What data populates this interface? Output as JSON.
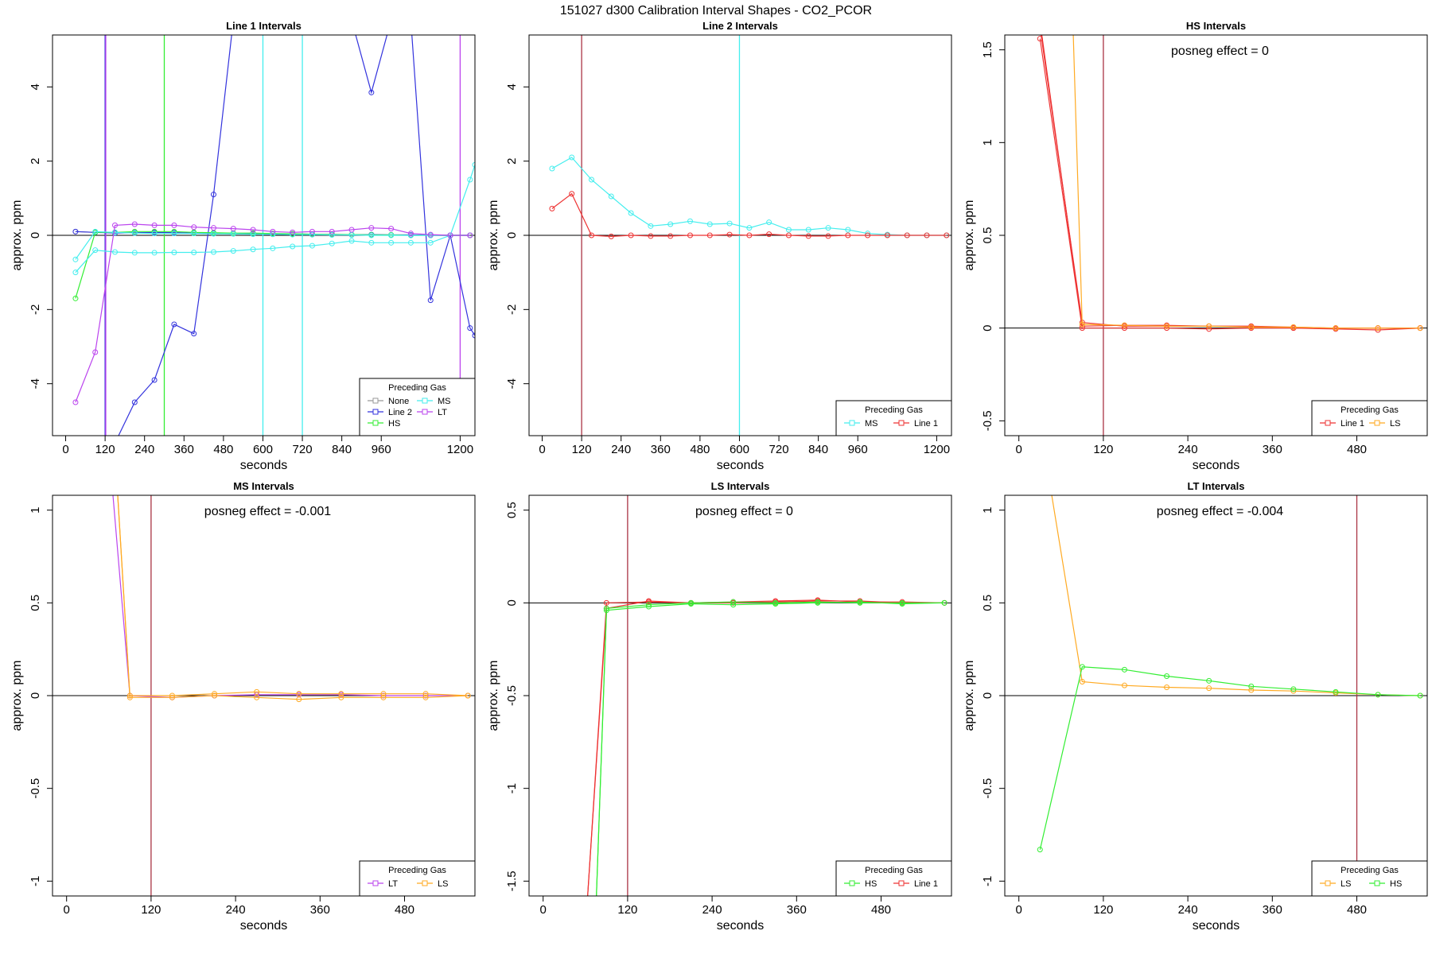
{
  "figure_title": "151027  d300   Calibration Interval Shapes - CO2_PCOR",
  "colors": {
    "None": "#999999",
    "Line 2": "#3333dd",
    "HS": "#33ee33",
    "MS": "#44eeee",
    "LT": "#bb44ee",
    "Line 1": "#ee3333",
    "LS": "#ffaa22",
    "marker_line": "#aa3344"
  },
  "chart_data": [
    {
      "type": "line",
      "title": "Line 1 Intervals",
      "xlabel": "seconds",
      "ylabel": "approx. ppm",
      "xlim": [
        -40,
        1245
      ],
      "ylim": [
        -5.4,
        5.4
      ],
      "xticks": [
        0,
        120,
        240,
        360,
        480,
        600,
        720,
        840,
        960,
        1200
      ],
      "yticks": [
        -4,
        -2,
        0,
        2,
        4
      ],
      "annotation": "",
      "vlines": [
        {
          "x": 120,
          "color": "#3333dd"
        },
        {
          "x": 122,
          "color": "#bb44ee"
        },
        {
          "x": 300,
          "color": "#33ee33"
        },
        {
          "x": 600,
          "color": "#44eeee"
        },
        {
          "x": 720,
          "color": "#44eeee"
        },
        {
          "x": 1200,
          "color": "#bb44ee"
        }
      ],
      "legend": {
        "title": "Preceding Gas",
        "position": "bottom-right",
        "columns": 2,
        "entries": [
          "None",
          "MS",
          "Line 2",
          "LT",
          "HS"
        ]
      },
      "series": [
        {
          "name": "None",
          "x": [
            30,
            90,
            150,
            210,
            270,
            330,
            390,
            450,
            510,
            570,
            630,
            690,
            750,
            810,
            870,
            930,
            990,
            1050,
            1110,
            1170,
            1230
          ],
          "y": [
            0.1,
            0.08,
            0.07,
            0.07,
            0.07,
            0.07,
            0.06,
            0.06,
            0.05,
            0.05,
            0.04,
            0.04,
            0.03,
            0.03,
            0.02,
            0.02,
            0.01,
            0.01,
            0.0,
            0.0,
            0.0
          ]
        },
        {
          "name": "Line 2",
          "x": [
            30,
            90,
            150,
            210,
            270,
            330,
            390,
            450,
            510,
            570,
            630,
            690,
            750,
            810,
            870,
            930,
            990,
            1050,
            1110,
            1170,
            1230
          ],
          "y": [
            0.1,
            0.08,
            0.06,
            0.07,
            0.08,
            0.07,
            0.06,
            0.05,
            0.04,
            0.04,
            0.03,
            0.03,
            0.02,
            0.02,
            0.01,
            0.02,
            0.01,
            0.01,
            0.0,
            0.0,
            0.0
          ]
        },
        {
          "name": "Line 2",
          "x": [
            150,
            210,
            270,
            330,
            390,
            450,
            510,
            870,
            930,
            990,
            1050,
            1110,
            1170,
            1230,
            1245
          ],
          "y": [
            -5.6,
            -4.5,
            -3.9,
            -2.4,
            -2.65,
            1.1,
            5.8,
            5.8,
            3.85,
            5.8,
            5.8,
            -1.75,
            0.0,
            -2.5,
            -2.7
          ]
        },
        {
          "name": "HS",
          "x": [
            30,
            90,
            150,
            210,
            270,
            330,
            390,
            450,
            510,
            570,
            630,
            690,
            750,
            810,
            870,
            930,
            990,
            1050,
            1110,
            1170,
            1230
          ],
          "y": [
            -1.7,
            0.08,
            0.08,
            0.1,
            0.1,
            0.1,
            0.08,
            0.07,
            0.06,
            0.06,
            0.05,
            0.04,
            0.03,
            0.02,
            0.02,
            0.01,
            0.01,
            0.0,
            0.0,
            0.0,
            0.0
          ]
        },
        {
          "name": "MS",
          "x": [
            30,
            90,
            150,
            210,
            270,
            330,
            390,
            450,
            510,
            570,
            630,
            690,
            750,
            810,
            870,
            930,
            990,
            1050,
            1110,
            1170,
            1230,
            1245
          ],
          "y": [
            -1.0,
            -0.4,
            -0.45,
            -0.47,
            -0.47,
            -0.46,
            -0.46,
            -0.45,
            -0.42,
            -0.38,
            -0.35,
            -0.3,
            -0.28,
            -0.22,
            -0.15,
            -0.2,
            -0.2,
            -0.2,
            -0.2,
            0.0,
            1.5,
            1.9
          ]
        },
        {
          "name": "MS",
          "x": [
            30,
            90,
            150,
            210,
            270,
            330,
            390,
            450,
            510,
            570,
            630,
            690,
            750,
            810,
            870,
            930,
            990,
            1050,
            1110,
            1170,
            1230
          ],
          "y": [
            -0.65,
            0.1,
            0.08,
            0.06,
            0.05,
            0.05,
            0.05,
            0.04,
            0.04,
            0.03,
            0.03,
            0.02,
            0.02,
            0.01,
            0.01,
            0.0,
            0.0,
            0.0,
            0.0,
            0.0,
            0.0
          ]
        },
        {
          "name": "LT",
          "x": [
            30,
            90,
            150,
            210,
            270,
            330,
            390,
            450,
            510,
            570,
            630,
            690,
            750,
            810,
            870,
            930,
            990,
            1050,
            1110,
            1170,
            1230
          ],
          "y": [
            -4.5,
            -3.15,
            0.27,
            0.3,
            0.27,
            0.27,
            0.22,
            0.2,
            0.18,
            0.15,
            0.1,
            0.08,
            0.1,
            0.1,
            0.15,
            0.2,
            0.18,
            0.05,
            0.02,
            0.0,
            0.0
          ]
        }
      ]
    },
    {
      "type": "line",
      "title": "Line 2 Intervals",
      "xlabel": "seconds",
      "ylabel": "approx. ppm",
      "xlim": [
        -40,
        1245
      ],
      "ylim": [
        -5.4,
        5.4
      ],
      "xticks": [
        0,
        120,
        240,
        360,
        480,
        600,
        720,
        840,
        960,
        1200
      ],
      "yticks": [
        -4,
        -2,
        0,
        2,
        4
      ],
      "annotation": "",
      "vlines": [
        {
          "x": 120,
          "color": "#aa3344"
        },
        {
          "x": 600,
          "color": "#44eeee"
        }
      ],
      "legend": {
        "title": "Preceding Gas",
        "position": "bottom-right",
        "columns": 2,
        "entries": [
          "MS",
          "Line 1"
        ]
      },
      "series": [
        {
          "name": "MS",
          "x": [
            30,
            90,
            150,
            210,
            270,
            330,
            390,
            450,
            510,
            570,
            630,
            690,
            750,
            810,
            870,
            930,
            990,
            1050,
            1110,
            1170,
            1230
          ],
          "y": [
            1.8,
            2.1,
            1.5,
            1.05,
            0.6,
            0.25,
            0.3,
            0.38,
            0.3,
            0.32,
            0.2,
            0.35,
            0.15,
            0.15,
            0.2,
            0.15,
            0.05,
            0.02,
            0.0,
            0.0,
            0.0
          ]
        },
        {
          "name": "Line 1",
          "x": [
            30,
            90,
            150,
            210,
            270,
            330,
            390,
            450,
            510,
            570,
            630,
            690,
            750,
            810,
            870,
            930,
            990,
            1050,
            1110,
            1170,
            1230
          ],
          "y": [
            0.72,
            1.12,
            0.0,
            -0.03,
            0.0,
            -0.02,
            -0.02,
            0.0,
            0.0,
            0.02,
            0.0,
            0.03,
            0.0,
            -0.02,
            -0.02,
            0.0,
            0.0,
            0.0,
            0.0,
            0.0,
            0.0
          ]
        }
      ]
    },
    {
      "type": "line",
      "title": "HS Intervals",
      "xlabel": "seconds",
      "ylabel": "approx. ppm",
      "xlim": [
        -20,
        580
      ],
      "ylim": [
        -0.58,
        1.58
      ],
      "xticks": [
        0,
        120,
        240,
        360,
        480
      ],
      "yticks": [
        -0.5,
        0.0,
        0.5,
        1.0,
        1.5
      ],
      "annotation": "posneg effect = 0",
      "vlines": [
        {
          "x": 120,
          "color": "#aa3344"
        }
      ],
      "legend": {
        "title": "Preceding Gas",
        "position": "bottom-right",
        "columns": 2,
        "entries": [
          "Line 1",
          "LS"
        ]
      },
      "series": [
        {
          "name": "Line 1",
          "x": [
            30,
            90,
            150,
            210,
            270,
            330,
            390,
            450,
            510,
            570
          ],
          "y": [
            1.56,
            0.0,
            0.0,
            0.0,
            -0.005,
            0.0,
            0.0,
            -0.005,
            -0.01,
            0.0
          ]
        },
        {
          "name": "Line 1",
          "x": [
            30,
            90,
            150,
            210,
            270,
            330,
            390,
            450,
            510,
            570
          ],
          "y": [
            1.62,
            0.03,
            0.01,
            0.01,
            0.01,
            0.01,
            0.005,
            0.0,
            0.0,
            0.0
          ]
        },
        {
          "name": "Line 1",
          "x": [
            30,
            90,
            150,
            210,
            270,
            330,
            390,
            450,
            510,
            570
          ],
          "y": [
            1.65,
            0.01,
            0.015,
            0.015,
            0.01,
            0.01,
            0.0,
            0.0,
            0.0,
            0.0
          ]
        },
        {
          "name": "LS",
          "x": [
            77,
            90,
            150,
            210,
            270,
            330,
            390,
            450,
            510,
            570
          ],
          "y": [
            1.62,
            0.02,
            0.015,
            0.01,
            0.01,
            0.005,
            0.005,
            0.0,
            0.0,
            0.0
          ]
        }
      ]
    },
    {
      "type": "line",
      "title": "MS Intervals",
      "xlabel": "seconds",
      "ylabel": "approx. ppm",
      "xlim": [
        -20,
        580
      ],
      "ylim": [
        -1.08,
        1.08
      ],
      "xticks": [
        0,
        120,
        240,
        360,
        480
      ],
      "yticks": [
        -1.0,
        -0.5,
        0.0,
        0.5,
        1.0
      ],
      "annotation": "posneg effect = -0.001",
      "vlines": [
        {
          "x": 120,
          "color": "#aa3344"
        }
      ],
      "legend": {
        "title": "Preceding Gas",
        "position": "bottom-right",
        "columns": 2,
        "entries": [
          "LT",
          "LS"
        ]
      },
      "series": [
        {
          "name": "LT",
          "x": [
            65,
            90,
            150,
            210,
            270,
            330,
            390,
            450,
            510,
            570
          ],
          "y": [
            1.12,
            0.0,
            -0.01,
            0.0,
            0.005,
            0.005,
            0.005,
            0.0,
            0.0,
            0.0
          ]
        },
        {
          "name": "LS",
          "x": [
            72,
            90,
            150,
            210,
            270,
            330,
            390,
            450,
            510,
            570
          ],
          "y": [
            1.12,
            0.0,
            0.0,
            0.01,
            0.02,
            0.01,
            0.01,
            0.01,
            0.01,
            0.0
          ]
        },
        {
          "name": "LS",
          "x": [
            72,
            90,
            150,
            210,
            270,
            330,
            390,
            450,
            510,
            570
          ],
          "y": [
            1.12,
            -0.01,
            -0.01,
            0.0,
            -0.01,
            -0.02,
            -0.01,
            -0.01,
            -0.01,
            0.0
          ]
        }
      ]
    },
    {
      "type": "line",
      "title": "LS Intervals",
      "xlabel": "seconds",
      "ylabel": "approx. ppm",
      "xlim": [
        -20,
        580
      ],
      "ylim": [
        -1.58,
        0.58
      ],
      "xticks": [
        0,
        120,
        240,
        360,
        480
      ],
      "yticks": [
        -1.5,
        -1.0,
        -0.5,
        0.0,
        0.5
      ],
      "annotation": "posneg effect = 0",
      "vlines": [
        {
          "x": 120,
          "color": "#aa3344"
        }
      ],
      "legend": {
        "title": "Preceding Gas",
        "position": "bottom-right",
        "columns": 2,
        "entries": [
          "HS",
          "Line 1"
        ]
      },
      "series": [
        {
          "name": "Line 1",
          "x": [
            62,
            90,
            150,
            210,
            270,
            330,
            390,
            450,
            510,
            570
          ],
          "y": [
            -1.65,
            0.0,
            0.005,
            0.0,
            0.005,
            0.01,
            0.015,
            0.005,
            0.005,
            0.0
          ]
        },
        {
          "name": "Line 1",
          "x": [
            62,
            90,
            150,
            210,
            270,
            330,
            390,
            450,
            510,
            570
          ],
          "y": [
            -1.65,
            -0.03,
            0.01,
            0.0,
            0.0,
            0.005,
            0.01,
            0.01,
            0.0,
            0.0
          ]
        },
        {
          "name": "HS",
          "x": [
            75,
            90,
            150,
            210,
            270,
            330,
            390,
            450,
            510,
            570
          ],
          "y": [
            -1.65,
            -0.04,
            -0.02,
            -0.005,
            -0.01,
            -0.005,
            0.0,
            0.005,
            -0.005,
            0.0
          ]
        },
        {
          "name": "HS",
          "x": [
            75,
            90,
            150,
            210,
            270,
            330,
            390,
            450,
            510,
            570
          ],
          "y": [
            -1.65,
            -0.03,
            -0.01,
            0.0,
            0.005,
            0.0,
            0.005,
            0.0,
            0.0,
            0.0
          ]
        }
      ]
    },
    {
      "type": "line",
      "title": "LT Intervals",
      "xlabel": "seconds",
      "ylabel": "approx. ppm",
      "xlim": [
        -20,
        580
      ],
      "ylim": [
        -1.08,
        1.08
      ],
      "xticks": [
        0,
        120,
        240,
        360,
        480
      ],
      "yticks": [
        -1.0,
        -0.5,
        0.0,
        0.5,
        1.0
      ],
      "annotation": "posneg effect = -0.004",
      "vlines": [
        {
          "x": 480,
          "color": "#aa3344"
        }
      ],
      "legend": {
        "title": "Preceding Gas",
        "position": "bottom-right",
        "columns": 2,
        "entries": [
          "LS",
          "HS"
        ]
      },
      "series": [
        {
          "name": "LS",
          "x": [
            45,
            90,
            150,
            210,
            270,
            330,
            390,
            450,
            510,
            570
          ],
          "y": [
            1.12,
            0.075,
            0.055,
            0.045,
            0.04,
            0.03,
            0.025,
            0.015,
            0.005,
            0.0
          ]
        },
        {
          "name": "HS",
          "x": [
            30,
            90,
            150,
            210,
            270,
            330,
            390,
            450,
            510,
            570
          ],
          "y": [
            -0.83,
            0.155,
            0.14,
            0.105,
            0.08,
            0.05,
            0.035,
            0.02,
            0.005,
            0.0
          ]
        }
      ]
    }
  ]
}
